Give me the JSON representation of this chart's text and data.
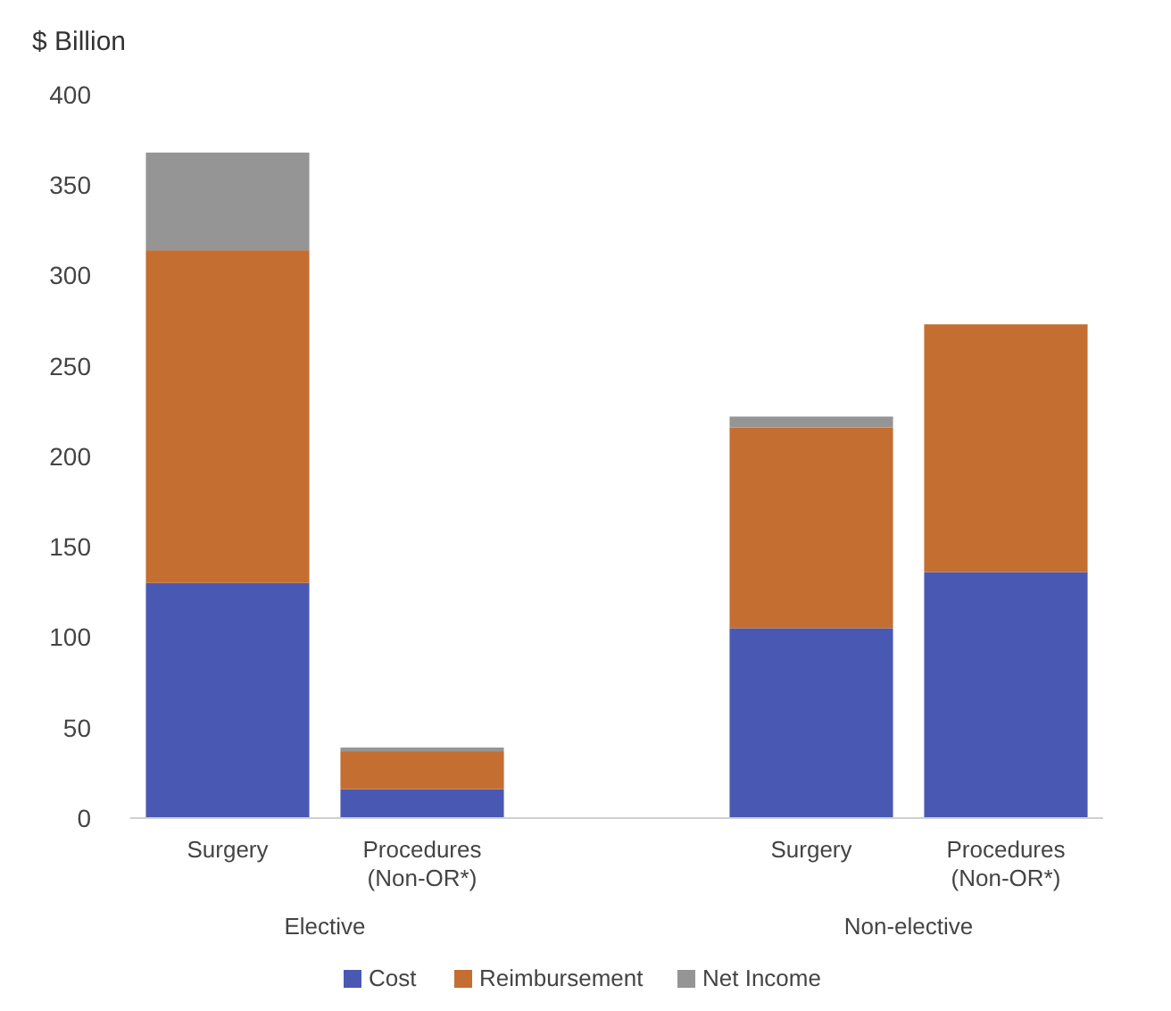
{
  "chart_data": {
    "type": "bar",
    "stacked": true,
    "ylabel": "$ Billion",
    "categories": [
      "Surgery",
      "Procedures (Non-OR*)",
      null,
      "Surgery",
      "Procedures (Non-OR*)"
    ],
    "series": [
      {
        "name": "Cost",
        "color": "#4959b3",
        "values": [
          130,
          16,
          null,
          105,
          136
        ]
      },
      {
        "name": "Reimbursement",
        "color": "#c46e32",
        "values": [
          184,
          21,
          null,
          111,
          137
        ]
      },
      {
        "name": "Net Income",
        "color": "#959595",
        "values": [
          54,
          2,
          null,
          6,
          0
        ]
      }
    ],
    "annotations": [
      "Elective",
      "Non-elective"
    ],
    "ylim": [
      0,
      400
    ],
    "yticks": [
      0,
      50,
      100,
      150,
      200,
      250,
      300,
      350,
      400
    ],
    "grid": false,
    "legend": "bottom"
  }
}
